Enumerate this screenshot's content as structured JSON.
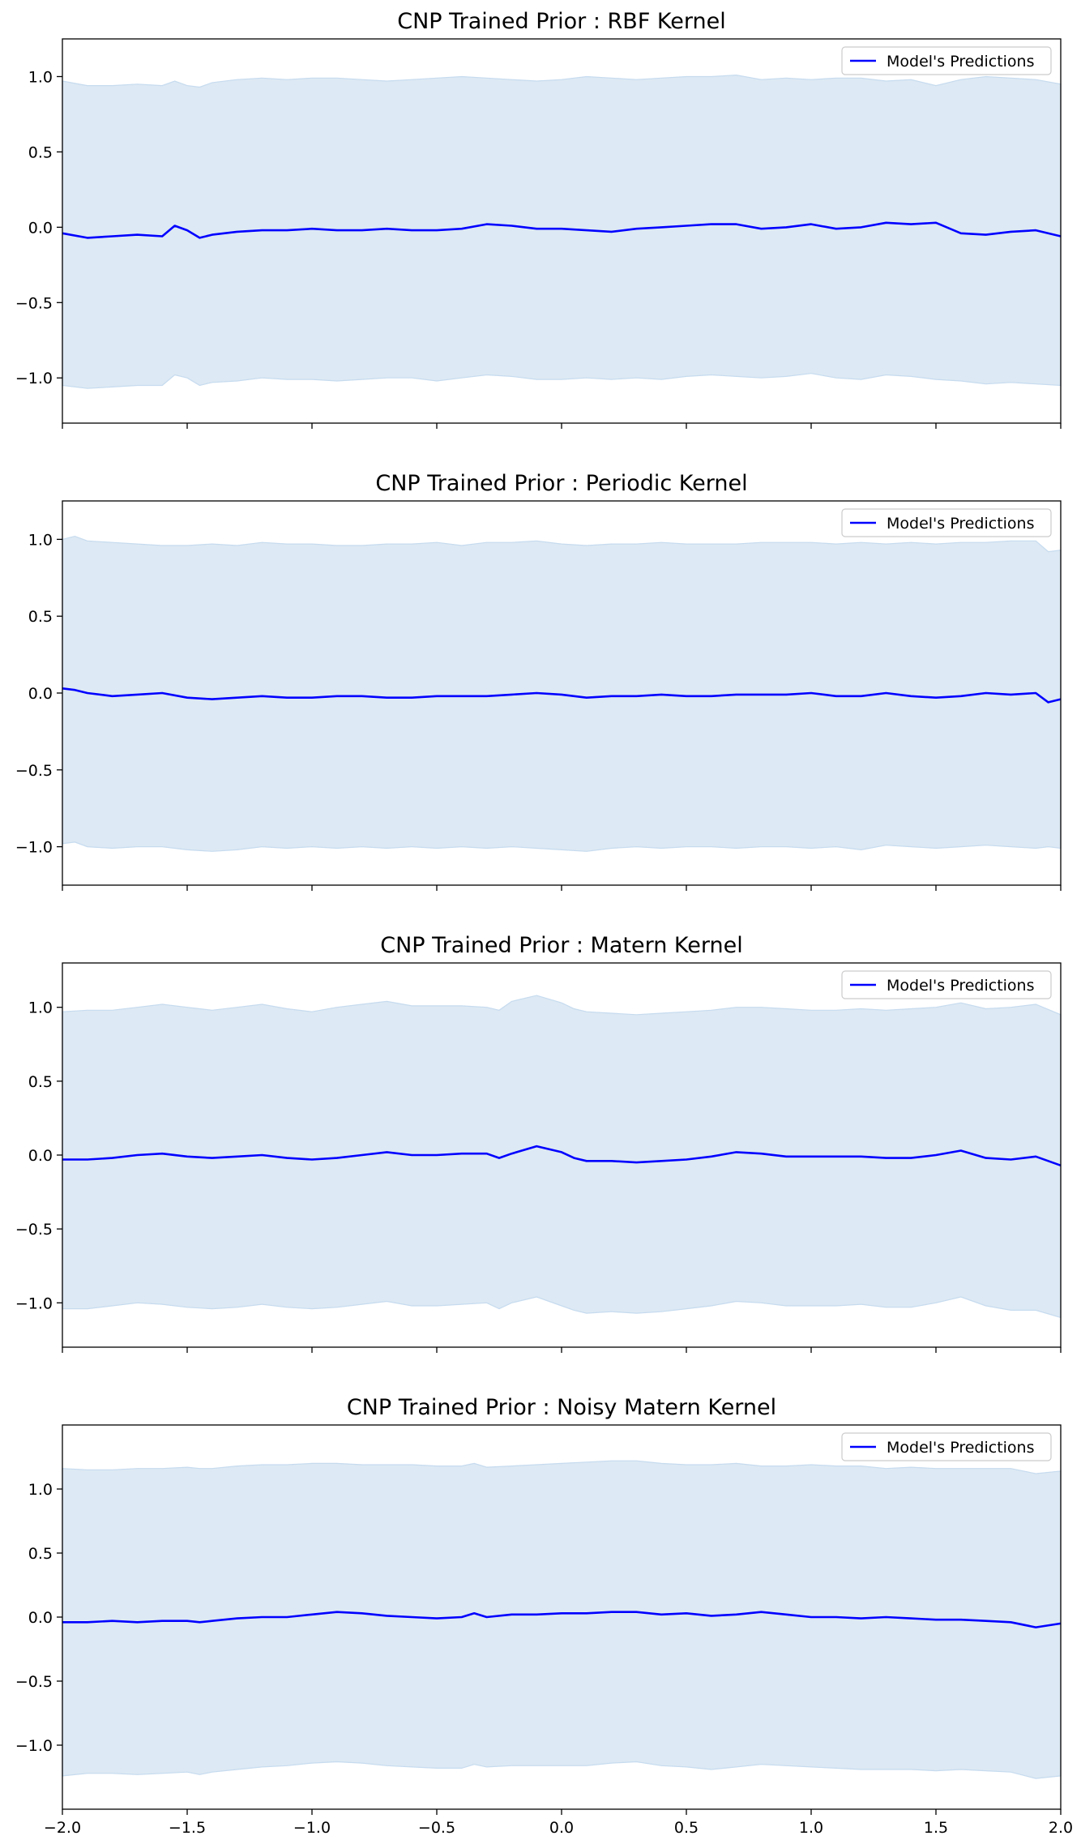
{
  "chart_data": [
    {
      "type": "line",
      "title": "CNP Trained Prior : RBF Kernel",
      "xlim": [
        -2.0,
        2.0
      ],
      "ylim": [
        -1.3,
        1.25
      ],
      "yticks": [
        "1.0",
        "0.5",
        "0.0",
        "−0.5",
        "−1.0"
      ],
      "ytick_values": [
        1.0,
        0.5,
        0.0,
        -0.5,
        -1.0
      ],
      "xticks": [],
      "legend": "top-right",
      "series": [
        {
          "name": "Model's Predictions",
          "color": "#0000ff",
          "x": [
            -2.0,
            -1.9,
            -1.8,
            -1.7,
            -1.6,
            -1.55,
            -1.5,
            -1.45,
            -1.4,
            -1.3,
            -1.2,
            -1.1,
            -1.0,
            -0.9,
            -0.8,
            -0.7,
            -0.6,
            -0.5,
            -0.4,
            -0.3,
            -0.2,
            -0.1,
            0.0,
            0.1,
            0.2,
            0.3,
            0.4,
            0.5,
            0.6,
            0.7,
            0.8,
            0.9,
            1.0,
            1.1,
            1.2,
            1.3,
            1.4,
            1.5,
            1.6,
            1.7,
            1.8,
            1.9,
            2.0
          ],
          "y": [
            -0.04,
            -0.07,
            -0.06,
            -0.05,
            -0.06,
            0.01,
            -0.02,
            -0.07,
            -0.05,
            -0.03,
            -0.02,
            -0.02,
            -0.01,
            -0.02,
            -0.02,
            -0.01,
            -0.02,
            -0.02,
            -0.01,
            0.02,
            0.01,
            -0.01,
            -0.01,
            -0.02,
            -0.03,
            -0.01,
            0.0,
            0.01,
            0.02,
            0.02,
            -0.01,
            0.0,
            0.02,
            -0.01,
            0.0,
            0.03,
            0.02,
            0.03,
            -0.04,
            -0.05,
            -0.03,
            -0.02,
            -0.06
          ]
        }
      ],
      "band": {
        "color": "#dde9f4",
        "upper": [
          0.97,
          0.94,
          0.94,
          0.95,
          0.94,
          0.97,
          0.94,
          0.93,
          0.96,
          0.98,
          0.99,
          0.98,
          0.99,
          0.99,
          0.98,
          0.97,
          0.98,
          0.99,
          1.0,
          0.99,
          0.98,
          0.97,
          0.98,
          1.0,
          0.99,
          0.98,
          0.99,
          1.0,
          1.0,
          1.01,
          0.98,
          0.99,
          0.98,
          0.99,
          0.99,
          0.97,
          0.98,
          0.94,
          0.98,
          1.0,
          0.99,
          0.98,
          0.95
        ],
        "lower": [
          -1.05,
          -1.07,
          -1.06,
          -1.05,
          -1.05,
          -0.98,
          -1.0,
          -1.05,
          -1.03,
          -1.02,
          -1.0,
          -1.01,
          -1.01,
          -1.02,
          -1.01,
          -1.0,
          -1.0,
          -1.02,
          -1.0,
          -0.98,
          -0.99,
          -1.01,
          -1.01,
          -1.0,
          -1.01,
          -1.0,
          -1.01,
          -0.99,
          -0.98,
          -0.99,
          -1.0,
          -0.99,
          -0.97,
          -1.0,
          -1.01,
          -0.98,
          -0.99,
          -1.01,
          -1.02,
          -1.04,
          -1.03,
          -1.04,
          -1.05
        ]
      }
    },
    {
      "type": "line",
      "title": "CNP Trained Prior : Periodic Kernel",
      "xlim": [
        -2.0,
        2.0
      ],
      "ylim": [
        -1.25,
        1.25
      ],
      "yticks": [
        "1.0",
        "0.5",
        "0.0",
        "−0.5",
        "−1.0"
      ],
      "ytick_values": [
        1.0,
        0.5,
        0.0,
        -0.5,
        -1.0
      ],
      "xticks": [],
      "legend": "top-right",
      "series": [
        {
          "name": "Model's Predictions",
          "color": "#0000ff",
          "x": [
            -2.0,
            -1.95,
            -1.9,
            -1.8,
            -1.7,
            -1.6,
            -1.5,
            -1.4,
            -1.3,
            -1.2,
            -1.1,
            -1.0,
            -0.9,
            -0.8,
            -0.7,
            -0.6,
            -0.5,
            -0.4,
            -0.3,
            -0.2,
            -0.1,
            0.0,
            0.1,
            0.2,
            0.3,
            0.4,
            0.5,
            0.6,
            0.7,
            0.8,
            0.9,
            1.0,
            1.1,
            1.2,
            1.3,
            1.4,
            1.5,
            1.6,
            1.7,
            1.8,
            1.9,
            1.95,
            2.0
          ],
          "y": [
            0.03,
            0.02,
            0.0,
            -0.02,
            -0.01,
            0.0,
            -0.03,
            -0.04,
            -0.03,
            -0.02,
            -0.03,
            -0.03,
            -0.02,
            -0.02,
            -0.03,
            -0.03,
            -0.02,
            -0.02,
            -0.02,
            -0.01,
            0.0,
            -0.01,
            -0.03,
            -0.02,
            -0.02,
            -0.01,
            -0.02,
            -0.02,
            -0.01,
            -0.01,
            -0.01,
            0.0,
            -0.02,
            -0.02,
            0.0,
            -0.02,
            -0.03,
            -0.02,
            0.0,
            -0.01,
            0.0,
            -0.06,
            -0.04
          ]
        }
      ],
      "band": {
        "color": "#dde9f4",
        "upper": [
          1.0,
          1.02,
          0.99,
          0.98,
          0.97,
          0.96,
          0.96,
          0.97,
          0.96,
          0.98,
          0.97,
          0.97,
          0.96,
          0.96,
          0.97,
          0.97,
          0.98,
          0.96,
          0.98,
          0.98,
          0.99,
          0.97,
          0.96,
          0.97,
          0.97,
          0.98,
          0.97,
          0.97,
          0.97,
          0.98,
          0.98,
          0.98,
          0.97,
          0.98,
          0.97,
          0.98,
          0.97,
          0.98,
          0.98,
          0.99,
          0.99,
          0.92,
          0.93
        ],
        "lower": [
          -0.98,
          -0.97,
          -1.0,
          -1.01,
          -1.0,
          -1.0,
          -1.02,
          -1.03,
          -1.02,
          -1.0,
          -1.01,
          -1.0,
          -1.01,
          -1.0,
          -1.01,
          -1.0,
          -1.01,
          -1.0,
          -1.01,
          -1.0,
          -1.01,
          -1.02,
          -1.03,
          -1.01,
          -1.0,
          -1.01,
          -1.0,
          -1.0,
          -1.01,
          -1.0,
          -1.0,
          -1.01,
          -1.0,
          -1.02,
          -0.99,
          -1.0,
          -1.01,
          -1.0,
          -0.99,
          -1.0,
          -1.01,
          -1.0,
          -1.01
        ]
      }
    },
    {
      "type": "line",
      "title": "CNP Trained Prior : Matern Kernel",
      "xlim": [
        -2.0,
        2.0
      ],
      "ylim": [
        -1.3,
        1.3
      ],
      "yticks": [
        "1.0",
        "0.5",
        "0.0",
        "−0.5",
        "−1.0"
      ],
      "ytick_values": [
        1.0,
        0.5,
        0.0,
        -0.5,
        -1.0
      ],
      "xticks": [],
      "legend": "top-right",
      "series": [
        {
          "name": "Model's Predictions",
          "color": "#0000ff",
          "x": [
            -2.0,
            -1.9,
            -1.8,
            -1.7,
            -1.6,
            -1.5,
            -1.4,
            -1.3,
            -1.2,
            -1.1,
            -1.0,
            -0.9,
            -0.8,
            -0.7,
            -0.6,
            -0.5,
            -0.4,
            -0.3,
            -0.25,
            -0.2,
            -0.1,
            0.0,
            0.05,
            0.1,
            0.2,
            0.3,
            0.4,
            0.5,
            0.6,
            0.7,
            0.8,
            0.9,
            1.0,
            1.1,
            1.2,
            1.3,
            1.4,
            1.5,
            1.6,
            1.7,
            1.8,
            1.9,
            2.0
          ],
          "y": [
            -0.03,
            -0.03,
            -0.02,
            0.0,
            0.01,
            -0.01,
            -0.02,
            -0.01,
            0.0,
            -0.02,
            -0.03,
            -0.02,
            0.0,
            0.02,
            0.0,
            0.0,
            0.01,
            0.01,
            -0.02,
            0.01,
            0.06,
            0.02,
            -0.02,
            -0.04,
            -0.04,
            -0.05,
            -0.04,
            -0.03,
            -0.01,
            0.02,
            0.01,
            -0.01,
            -0.01,
            -0.01,
            -0.01,
            -0.02,
            -0.02,
            0.0,
            0.03,
            -0.02,
            -0.03,
            -0.01,
            -0.07
          ]
        }
      ],
      "band": {
        "color": "#dde9f4",
        "upper": [
          0.97,
          0.98,
          0.98,
          1.0,
          1.02,
          1.0,
          0.98,
          1.0,
          1.02,
          0.99,
          0.97,
          1.0,
          1.02,
          1.04,
          1.01,
          1.01,
          1.01,
          1.0,
          0.98,
          1.04,
          1.08,
          1.03,
          0.99,
          0.97,
          0.96,
          0.95,
          0.96,
          0.97,
          0.98,
          1.0,
          1.0,
          0.99,
          0.98,
          0.98,
          0.99,
          0.98,
          0.99,
          1.0,
          1.03,
          0.99,
          1.0,
          1.02,
          0.95
        ],
        "lower": [
          -1.04,
          -1.04,
          -1.02,
          -1.0,
          -1.01,
          -1.03,
          -1.04,
          -1.03,
          -1.01,
          -1.03,
          -1.04,
          -1.03,
          -1.01,
          -0.99,
          -1.02,
          -1.02,
          -1.01,
          -1.0,
          -1.04,
          -1.0,
          -0.96,
          -1.02,
          -1.05,
          -1.07,
          -1.06,
          -1.07,
          -1.06,
          -1.04,
          -1.02,
          -0.99,
          -1.0,
          -1.02,
          -1.02,
          -1.02,
          -1.01,
          -1.03,
          -1.03,
          -1.0,
          -0.96,
          -1.02,
          -1.05,
          -1.05,
          -1.1
        ]
      }
    },
    {
      "type": "line",
      "title": "CNP Trained Prior : Noisy Matern Kernel",
      "xlim": [
        -2.0,
        2.0
      ],
      "ylim": [
        -1.5,
        1.5
      ],
      "yticks": [
        "1.0",
        "0.5",
        "0.0",
        "−0.5",
        "−1.0"
      ],
      "ytick_values": [
        1.0,
        0.5,
        0.0,
        -0.5,
        -1.0
      ],
      "xticks": [
        "−2.0",
        "−1.5",
        "−1.0",
        "−0.5",
        "0.0",
        "0.5",
        "1.0",
        "1.5",
        "2.0"
      ],
      "xtick_values": [
        -2.0,
        -1.5,
        -1.0,
        -0.5,
        0.0,
        0.5,
        1.0,
        1.5,
        2.0
      ],
      "legend": "top-right",
      "series": [
        {
          "name": "Model's Predictions",
          "color": "#0000ff",
          "x": [
            -2.0,
            -1.9,
            -1.8,
            -1.7,
            -1.6,
            -1.5,
            -1.45,
            -1.4,
            -1.3,
            -1.2,
            -1.1,
            -1.0,
            -0.9,
            -0.8,
            -0.7,
            -0.6,
            -0.5,
            -0.4,
            -0.35,
            -0.3,
            -0.2,
            -0.1,
            0.0,
            0.1,
            0.2,
            0.3,
            0.4,
            0.5,
            0.6,
            0.7,
            0.8,
            0.9,
            1.0,
            1.1,
            1.2,
            1.3,
            1.4,
            1.5,
            1.6,
            1.7,
            1.8,
            1.9,
            2.0
          ],
          "y": [
            -0.04,
            -0.04,
            -0.03,
            -0.04,
            -0.03,
            -0.03,
            -0.04,
            -0.03,
            -0.01,
            0.0,
            0.0,
            0.02,
            0.04,
            0.03,
            0.01,
            0.0,
            -0.01,
            0.0,
            0.03,
            0.0,
            0.02,
            0.02,
            0.03,
            0.03,
            0.04,
            0.04,
            0.02,
            0.03,
            0.01,
            0.02,
            0.04,
            0.02,
            0.0,
            0.0,
            -0.01,
            0.0,
            -0.01,
            -0.02,
            -0.02,
            -0.03,
            -0.04,
            -0.08,
            -0.05
          ]
        }
      ],
      "band": {
        "color": "#dde9f4",
        "upper": [
          1.16,
          1.15,
          1.15,
          1.16,
          1.16,
          1.17,
          1.16,
          1.16,
          1.18,
          1.19,
          1.19,
          1.2,
          1.2,
          1.19,
          1.19,
          1.19,
          1.18,
          1.18,
          1.2,
          1.17,
          1.18,
          1.19,
          1.2,
          1.21,
          1.22,
          1.22,
          1.2,
          1.19,
          1.19,
          1.2,
          1.18,
          1.18,
          1.19,
          1.18,
          1.18,
          1.16,
          1.17,
          1.16,
          1.16,
          1.16,
          1.16,
          1.12,
          1.14
        ],
        "lower": [
          -1.24,
          -1.22,
          -1.22,
          -1.23,
          -1.22,
          -1.21,
          -1.23,
          -1.21,
          -1.19,
          -1.17,
          -1.16,
          -1.14,
          -1.13,
          -1.14,
          -1.16,
          -1.17,
          -1.18,
          -1.18,
          -1.15,
          -1.17,
          -1.16,
          -1.16,
          -1.16,
          -1.16,
          -1.14,
          -1.13,
          -1.16,
          -1.17,
          -1.19,
          -1.17,
          -1.15,
          -1.16,
          -1.17,
          -1.18,
          -1.19,
          -1.19,
          -1.19,
          -1.2,
          -1.19,
          -1.2,
          -1.21,
          -1.26,
          -1.24
        ]
      }
    }
  ]
}
